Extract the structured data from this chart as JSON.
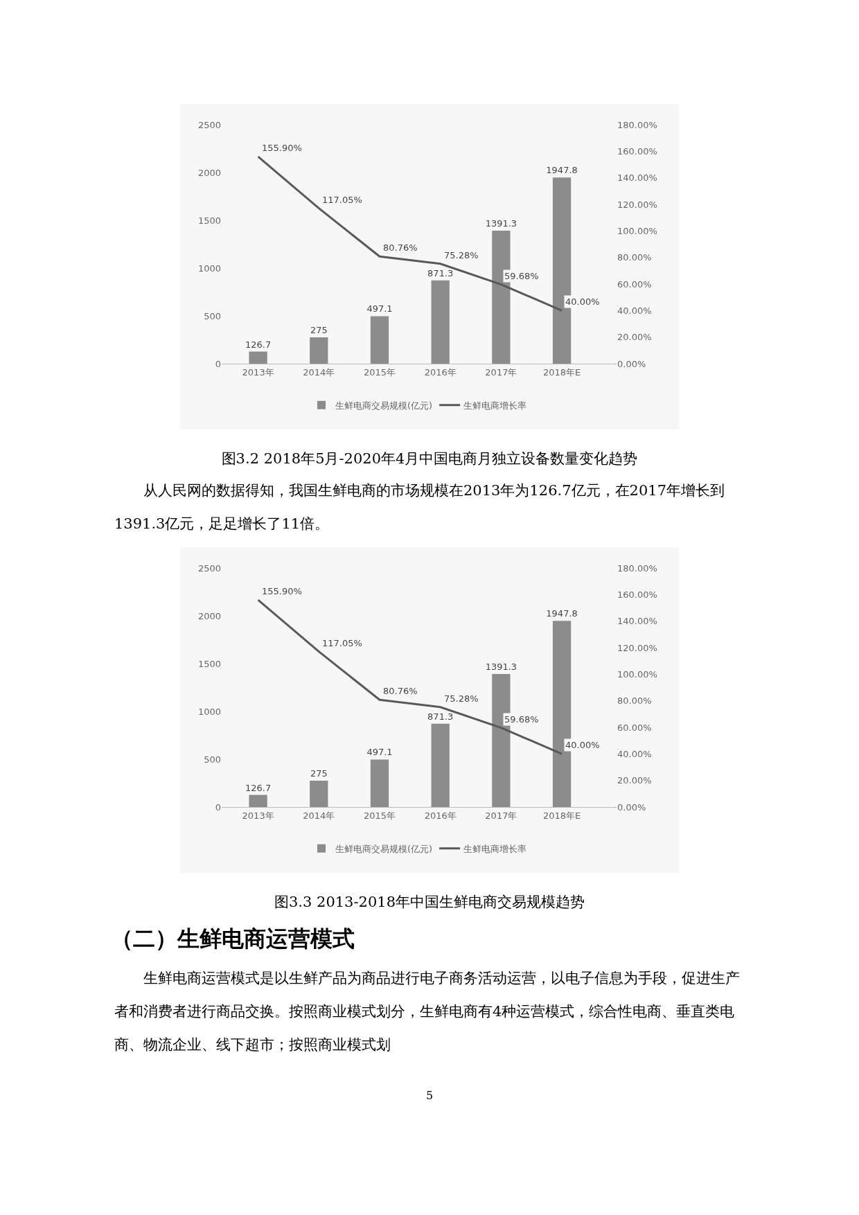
{
  "chart_data": [
    {
      "type": "bar",
      "categories": [
        "2013年",
        "2014年",
        "2015年",
        "2016年",
        "2017年",
        "2018年E"
      ],
      "series": [
        {
          "name": "生鲜电商交易规模(亿元)",
          "color": "#8c8c8c",
          "values": [
            126.7,
            275,
            497.1,
            871.3,
            1391.3,
            1947.8
          ],
          "value_labels": [
            "126.7",
            "275",
            "497.1",
            "871.3",
            "1391.3",
            "1947.8"
          ]
        },
        {
          "name": "生鲜电商增长率",
          "type": "line",
          "axis": "y2",
          "color": "#595959",
          "values": [
            155.9,
            117.05,
            80.76,
            75.28,
            59.68,
            40.0
          ],
          "value_labels": [
            "155.90%",
            "117.05%",
            "80.76%",
            "75.28%",
            "59.68%",
            "40.00%"
          ]
        }
      ],
      "ylim": [
        0,
        2500
      ],
      "yticks": [
        0,
        500,
        1000,
        1500,
        2000,
        2500
      ],
      "y2lim": [
        0,
        180
      ],
      "y2ticks": [
        {
          "value": 0,
          "label": "0.00%"
        },
        {
          "value": 20,
          "label": "20.00%"
        },
        {
          "value": 40,
          "label": "40.00%"
        },
        {
          "value": 60,
          "label": "60.00%"
        },
        {
          "value": 80,
          "label": "80.00%"
        },
        {
          "value": 100,
          "label": "100.00%"
        },
        {
          "value": 120,
          "label": "120.00%"
        },
        {
          "value": 140,
          "label": "140.00%"
        },
        {
          "value": 160,
          "label": "160.00%"
        },
        {
          "value": 180,
          "label": "180.00%"
        }
      ],
      "legend": "bottom",
      "grid": false,
      "marker": "none",
      "annotations": [
        "图3.2 2018年5月-2020年4月中国电商月独立设备数量变化趋势",
        "从人民网的数据得知，我国生鲜电商的市场规模在2013年为126.7亿元，在2017年增长到1391.3亿元，足足增长了11倍。"
      ]
    },
    {
      "type": "bar",
      "categories": [
        "2013年",
        "2014年",
        "2015年",
        "2016年",
        "2017年",
        "2018年E"
      ],
      "series": [
        {
          "name": "生鲜电商交易规模(亿元)",
          "color": "#8c8c8c",
          "values": [
            126.7,
            275,
            497.1,
            871.3,
            1391.3,
            1947.8
          ],
          "value_labels": [
            "126.7",
            "275",
            "497.1",
            "871.3",
            "1391.3",
            "1947.8"
          ]
        },
        {
          "name": "生鲜电商增长率",
          "type": "line",
          "axis": "y2",
          "color": "#595959",
          "values": [
            155.9,
            117.05,
            80.76,
            75.28,
            59.68,
            40.0
          ],
          "value_labels": [
            "155.90%",
            "117.05%",
            "80.76%",
            "75.28%",
            "59.68%",
            "40.00%"
          ]
        }
      ],
      "ylim": [
        0,
        2500
      ],
      "yticks": [
        0,
        500,
        1000,
        1500,
        2000,
        2500
      ],
      "y2lim": [
        0,
        180
      ],
      "y2ticks": [
        {
          "value": 0,
          "label": "0.00%"
        },
        {
          "value": 20,
          "label": "20.00%"
        },
        {
          "value": 40,
          "label": "40.00%"
        },
        {
          "value": 60,
          "label": "60.00%"
        },
        {
          "value": 80,
          "label": "80.00%"
        },
        {
          "value": 100,
          "label": "100.00%"
        },
        {
          "value": 120,
          "label": "120.00%"
        },
        {
          "value": 140,
          "label": "140.00%"
        },
        {
          "value": 160,
          "label": "160.00%"
        },
        {
          "value": 180,
          "label": "180.00%"
        }
      ],
      "legend": "bottom",
      "grid": false,
      "marker": "none",
      "annotations": [
        "图3.3 2013-2018年中国生鲜电商交易规模趋势",
        "（二）生鲜电商运营模式",
        "生鲜电商运营模式是以生鲜产品为商品进行电子商务活动运营，以电子信息为手段，促进生产者和消费者进行商品交换。按照商业模式划分，生鲜电商有4种运营模式，综合性电商、垂直类电商、物流企业、线下超市；按照商业模式划",
        "5"
      ]
    }
  ]
}
